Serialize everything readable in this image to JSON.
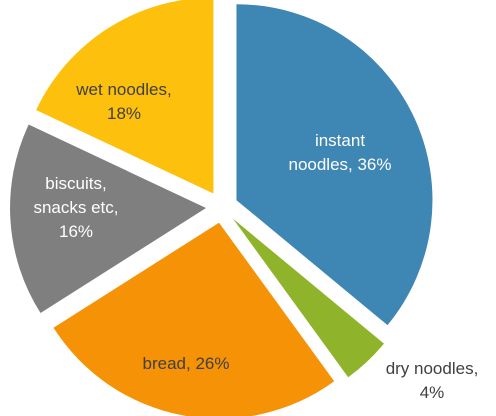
{
  "chart_data": {
    "type": "pie",
    "title": "",
    "slices": [
      {
        "label_lines": [
          "instant",
          "noodles, 36%"
        ],
        "category": "instant noodles",
        "value": 36,
        "color": "#3E86B3",
        "label_color": "#ffffff",
        "exploded": true
      },
      {
        "label_lines": [
          "dry noodles,",
          "4%"
        ],
        "category": "dry noodles",
        "value": 4,
        "color": "#8FB42B",
        "label_color": "#404040",
        "exploded": true
      },
      {
        "label_lines": [
          "bread, 26%"
        ],
        "category": "bread",
        "value": 26,
        "color": "#F59205",
        "label_color": "#404040",
        "exploded": true
      },
      {
        "label_lines": [
          "biscuits,",
          "snacks etc,",
          "16%"
        ],
        "category": "biscuits, snacks etc",
        "value": 16,
        "color": "#7F7F7F",
        "label_color": "#ffffff",
        "exploded": true
      },
      {
        "label_lines": [
          "wet noodles,",
          "18%"
        ],
        "category": "wet noodles",
        "value": 18,
        "color": "#FDC00D",
        "label_color": "#404040",
        "exploded": true
      }
    ]
  }
}
